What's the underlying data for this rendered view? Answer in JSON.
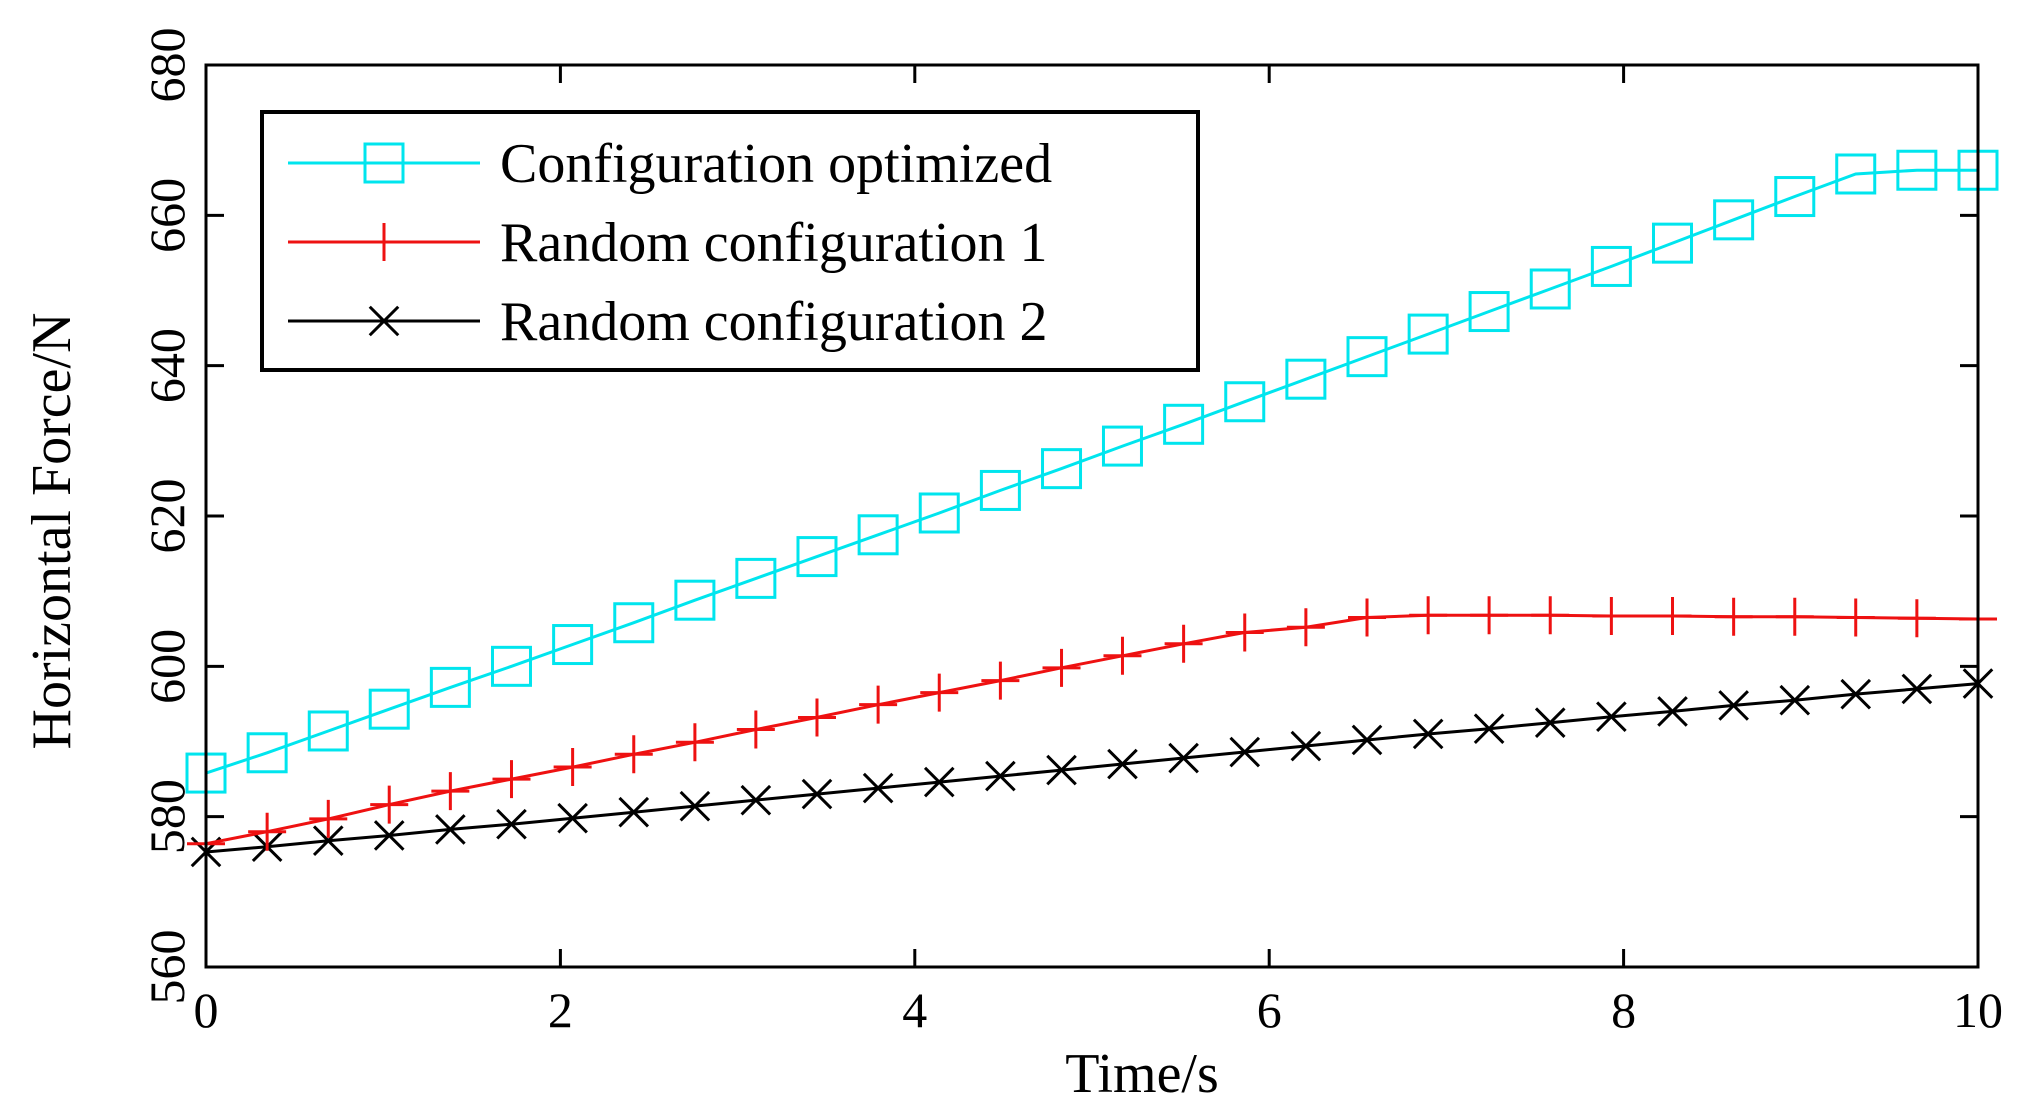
{
  "chart_data": {
    "type": "line",
    "title": "",
    "xlabel": "Time/s",
    "ylabel": "Horizontal Force/N",
    "xlim": [
      0,
      10
    ],
    "ylim": [
      560,
      680
    ],
    "xticks": [
      0,
      2,
      4,
      6,
      8,
      10
    ],
    "yticks": [
      560,
      580,
      600,
      620,
      640,
      660,
      680
    ],
    "legend_position": "top-left",
    "grid": false,
    "x": [
      0,
      0.345,
      0.69,
      1.034,
      1.379,
      1.724,
      2.069,
      2.414,
      2.759,
      3.103,
      3.448,
      3.793,
      4.138,
      4.483,
      4.828,
      5.172,
      5.517,
      5.862,
      6.207,
      6.552,
      6.897,
      7.241,
      7.586,
      7.931,
      8.276,
      8.621,
      8.966,
      9.31,
      9.655,
      10
    ],
    "series": [
      {
        "name": "Configuration optimized",
        "color": "#00e5ee",
        "marker": "square",
        "values": [
          585.8,
          588.5,
          591.4,
          594.3,
          597.2,
          600.0,
          602.9,
          605.8,
          608.8,
          611.7,
          614.6,
          617.5,
          620.4,
          623.4,
          626.3,
          629.3,
          632.2,
          635.2,
          638.2,
          641.2,
          644.2,
          647.2,
          650.2,
          653.2,
          656.3,
          659.4,
          662.5,
          665.5,
          666.0,
          666.0
        ]
      },
      {
        "name": "Random configuration 1",
        "color": "#ee1111",
        "marker": "plus",
        "values": [
          576.4,
          578.0,
          579.7,
          581.6,
          583.4,
          585.0,
          586.6,
          588.3,
          589.9,
          591.6,
          593.2,
          594.9,
          596.5,
          598.1,
          599.8,
          601.4,
          603.0,
          604.5,
          605.2,
          606.5,
          606.8,
          606.8,
          606.8,
          606.7,
          606.7,
          606.6,
          606.6,
          606.5,
          606.4,
          606.3
        ]
      },
      {
        "name": "Random configuration 2",
        "color": "#000000",
        "marker": "x",
        "values": [
          575.3,
          576.0,
          576.8,
          577.5,
          578.3,
          579.0,
          579.8,
          580.6,
          581.4,
          582.2,
          583.0,
          583.8,
          584.6,
          585.4,
          586.2,
          587.0,
          587.8,
          588.6,
          589.4,
          590.2,
          591.0,
          591.7,
          592.5,
          593.3,
          594.0,
          594.8,
          595.5,
          596.3,
          597.0,
          597.7
        ]
      }
    ]
  }
}
